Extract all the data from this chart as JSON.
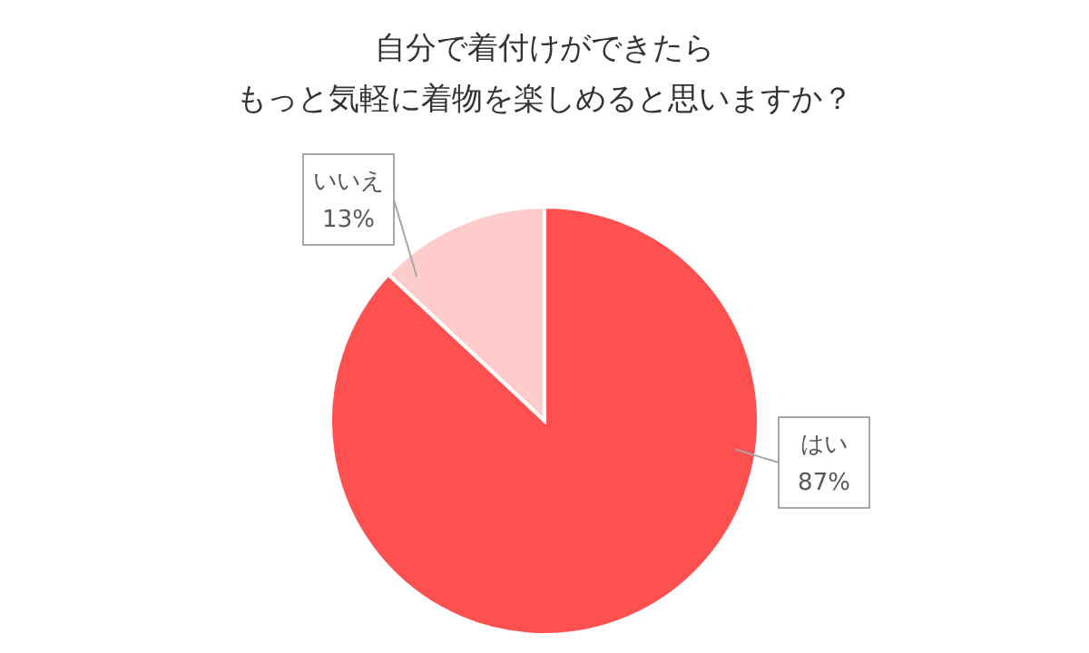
{
  "chart_data": {
    "type": "pie",
    "title": "自分で着付けができたら",
    "subtitle": "もっと気軽に着物を楽しめると思いますか？",
    "categories": [
      "はい",
      "いいえ"
    ],
    "values": [
      87,
      13
    ],
    "colors": [
      "#ff5050",
      "#ffcccc"
    ],
    "value_labels": [
      "87%",
      "13%"
    ]
  }
}
